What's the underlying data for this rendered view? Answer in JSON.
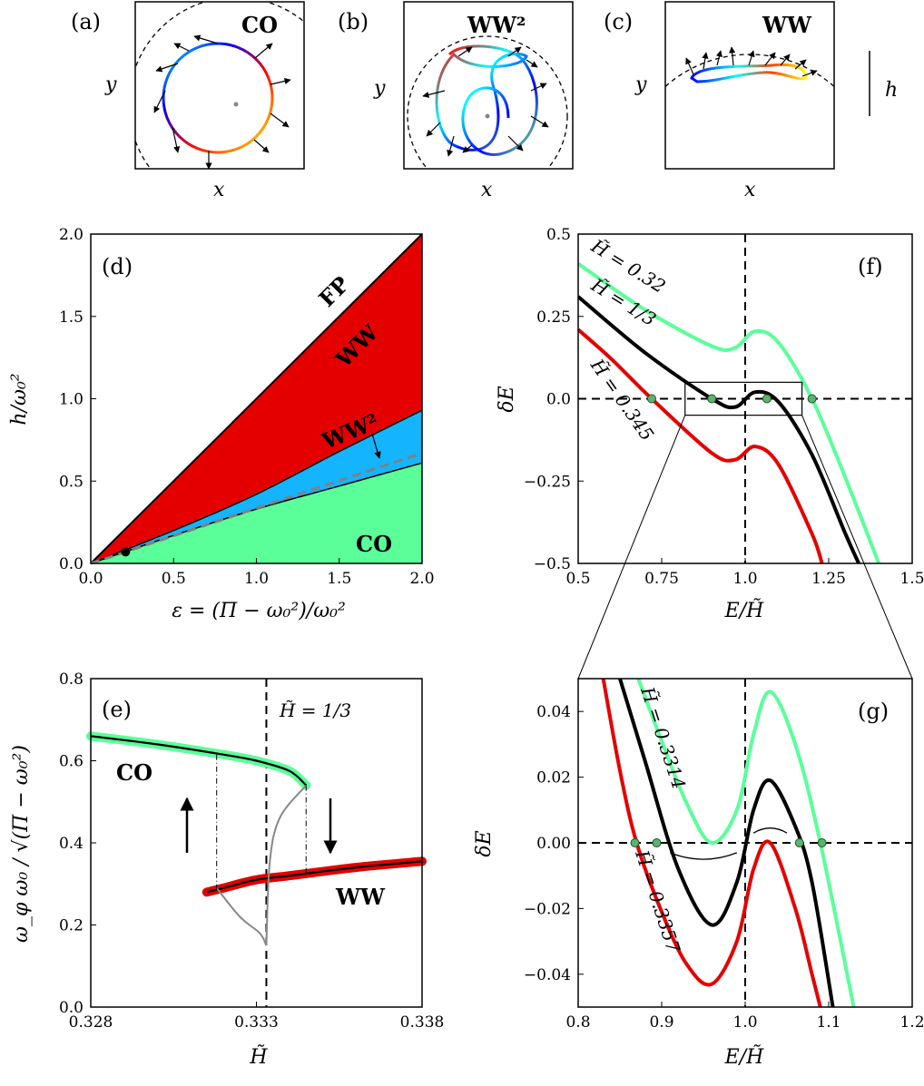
{
  "panels": {
    "a": {
      "label": "(a)",
      "title": "CO",
      "xlabel": "x",
      "ylabel": "y"
    },
    "b": {
      "label": "(b)",
      "title": "WW²",
      "xlabel": "x",
      "ylabel": "y"
    },
    "c": {
      "label": "(c)",
      "title": "WW",
      "xlabel": "x",
      "ylabel": "y",
      "scale_label": "h"
    }
  },
  "chart_data": [
    {
      "id": "d",
      "type": "area",
      "panel_label": "(d)",
      "xlabel": "ε = (Π − ω₀²)/ω₀²",
      "ylabel": "h/ω₀²",
      "xlim": [
        0,
        2
      ],
      "ylim": [
        0,
        2
      ],
      "xticks": [
        "0.0",
        "0.5",
        "1.0",
        "1.5",
        "2.0"
      ],
      "yticks": [
        "0.0",
        "0.5",
        "1.0",
        "1.5",
        "2.0"
      ],
      "boundaries": {
        "FP_line": {
          "x": [
            0,
            2
          ],
          "y": [
            0,
            2
          ]
        },
        "WW_WW2": {
          "x": [
            0,
            0.5,
            1.0,
            1.5,
            2.0
          ],
          "y": [
            0,
            0.2,
            0.42,
            0.68,
            0.93
          ]
        },
        "WW2_CO": {
          "x": [
            0,
            0.5,
            1.0,
            1.5,
            2.0
          ],
          "y": [
            0,
            0.17,
            0.33,
            0.47,
            0.61
          ]
        },
        "dashed": {
          "x": [
            0,
            2
          ],
          "y": [
            0,
            0.67
          ]
        }
      },
      "marker": {
        "x": 0.21,
        "y": 0.07
      },
      "region_labels": [
        "FP",
        "WW",
        "WW²",
        "CO"
      ],
      "colors": {
        "WW": "#e50000",
        "WW2": "#14b4ff",
        "CO": "#5aff9a",
        "dashed": "#808080"
      }
    },
    {
      "id": "e",
      "type": "line",
      "panel_label": "(e)",
      "xlabel": "H̃",
      "ylabel": "ω_φ ω₀ / √(Π − ω₀²)",
      "xlim": [
        0.328,
        0.338
      ],
      "ylim": [
        0.0,
        0.8
      ],
      "xticks": [
        "0.328",
        "0.333",
        "0.338"
      ],
      "yticks": [
        "0.0",
        "0.2",
        "0.4",
        "0.6",
        "0.8"
      ],
      "vline": {
        "x": 0.3333,
        "label": "H̃ = 1/3"
      },
      "series": [
        {
          "name": "CO",
          "color": "#5aff9a",
          "x": [
            0.328,
            0.33,
            0.332,
            0.333,
            0.334,
            0.3345
          ],
          "y": [
            0.66,
            0.64,
            0.615,
            0.6,
            0.575,
            0.54
          ]
        },
        {
          "name": "WW",
          "color": "#e50000",
          "x": [
            0.3315,
            0.332,
            0.333,
            0.334,
            0.336,
            0.338
          ],
          "y": [
            0.28,
            0.29,
            0.31,
            0.32,
            0.34,
            0.355
          ]
        }
      ],
      "series_labels": [
        "CO",
        "WW"
      ]
    },
    {
      "id": "f",
      "type": "line",
      "panel_label": "(f)",
      "xlabel": "E/H̃",
      "ylabel": "δE",
      "xlim": [
        0.5,
        1.5
      ],
      "ylim": [
        -0.5,
        0.5
      ],
      "xticks": [
        "0.5",
        "0.75",
        "1.0",
        "1.25",
        "1.5"
      ],
      "yticks": [
        "0.5",
        "0.25",
        "0.0",
        "−0.25",
        "−0.5"
      ],
      "series": [
        {
          "name": "H̃ = 0.32",
          "color": "#5aff9a",
          "x": [
            0.5,
            0.7,
            0.9,
            0.97,
            1.03,
            1.1,
            1.2,
            1.3,
            1.4
          ],
          "y": [
            0.41,
            0.27,
            0.16,
            0.155,
            0.205,
            0.17,
            0.0,
            -0.24,
            -0.5
          ]
        },
        {
          "name": "H̃ = 1/3",
          "color": "#000000",
          "x": [
            0.5,
            0.7,
            0.9,
            0.97,
            1.03,
            1.1,
            1.2,
            1.3,
            1.34
          ],
          "y": [
            0.31,
            0.14,
            0.0,
            -0.025,
            0.02,
            -0.01,
            -0.17,
            -0.41,
            -0.5
          ]
        },
        {
          "name": "H̃ = 0.345",
          "color": "#e50000",
          "x": [
            0.5,
            0.6,
            0.72,
            0.9,
            0.97,
            1.03,
            1.1,
            1.2,
            1.23
          ],
          "y": [
            0.21,
            0.12,
            0.0,
            -0.165,
            -0.185,
            -0.145,
            -0.2,
            -0.41,
            -0.5
          ]
        }
      ],
      "curve_labels": [
        "H̃ = 0.32",
        "H̃ = 1/3",
        "H̃ = 0.345"
      ]
    },
    {
      "id": "g",
      "type": "line",
      "panel_label": "(g)",
      "xlabel": "E/H̃",
      "ylabel": "δE",
      "xlim": [
        0.8,
        1.2
      ],
      "ylim": [
        -0.05,
        0.05
      ],
      "xticks": [
        "0.8",
        "0.9",
        "1.0",
        "1.1",
        "1.2"
      ],
      "yticks": [
        "0.04",
        "0.02",
        "0.00",
        "−0.02",
        "−0.04"
      ],
      "series": [
        {
          "name": "H̃ = 0.3314",
          "color": "#5aff9a",
          "x": [
            0.872,
            0.9,
            0.93,
            0.96,
            0.99,
            1.01,
            1.03,
            1.06,
            1.09,
            1.13
          ],
          "y": [
            0.05,
            0.031,
            0.012,
            0.0,
            0.01,
            0.033,
            0.046,
            0.03,
            0.0,
            -0.05
          ]
        },
        {
          "name": "H̃ = 1/3",
          "color": "#000000",
          "x": [
            0.85,
            0.88,
            0.92,
            0.96,
            0.99,
            1.01,
            1.03,
            1.06,
            1.08,
            1.105
          ],
          "y": [
            0.05,
            0.025,
            -0.008,
            -0.025,
            -0.012,
            0.01,
            0.019,
            0.005,
            -0.012,
            -0.05
          ]
        },
        {
          "name": "H̃ = 0.3357",
          "color": "#e50000",
          "x": [
            0.83,
            0.85,
            0.87,
            0.9,
            0.93,
            0.96,
            0.99,
            1.01,
            1.03,
            1.06,
            1.08,
            1.09
          ],
          "y": [
            0.05,
            0.022,
            0.0,
            -0.021,
            -0.037,
            -0.043,
            -0.03,
            -0.008,
            0.0,
            -0.02,
            -0.04,
            -0.05
          ]
        }
      ],
      "curve_labels": [
        "H̃ = 0.3314",
        "H̃ = 0.3357"
      ]
    }
  ]
}
